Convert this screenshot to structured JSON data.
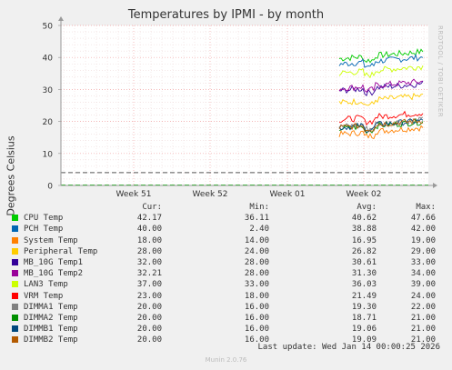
{
  "chart_data": {
    "type": "line",
    "title": "Temperatures by IPMI - by month",
    "ylabel": "Degrees Celsius",
    "ylim": [
      0,
      50
    ],
    "yticks": [
      0,
      10,
      20,
      30,
      40,
      50
    ],
    "xticks": [
      "Week 51",
      "Week 52",
      "Week 01",
      "Week 02"
    ],
    "grid": true,
    "legend_columns": [
      "Cur:",
      "Min:",
      "Avg:",
      "Max:"
    ],
    "series": [
      {
        "name": "CPU Temp",
        "color": "#00cc00",
        "cur": "42.17",
        "min": "36.11",
        "avg": "40.62",
        "max": "47.66",
        "level": 40.62
      },
      {
        "name": "PCH Temp",
        "color": "#0066b3",
        "cur": "40.00",
        "min": "2.40",
        "avg": "38.88",
        "max": "42.00",
        "level": 38.88
      },
      {
        "name": "System Temp",
        "color": "#ff8000",
        "cur": "18.00",
        "min": "14.00",
        "avg": "16.95",
        "max": "19.00",
        "level": 16.95
      },
      {
        "name": "Peripheral Temp",
        "color": "#ffcc00",
        "cur": "28.00",
        "min": "24.00",
        "avg": "26.82",
        "max": "29.00",
        "level": 26.82
      },
      {
        "name": "MB_10G Temp1",
        "color": "#330099",
        "cur": "32.00",
        "min": "28.00",
        "avg": "30.61",
        "max": "33.00",
        "level": 30.61
      },
      {
        "name": "MB_10G Temp2",
        "color": "#990099",
        "cur": "32.21",
        "min": "28.00",
        "avg": "31.30",
        "max": "34.00",
        "level": 31.3
      },
      {
        "name": "LAN3 Temp",
        "color": "#ccff00",
        "cur": "37.00",
        "min": "33.00",
        "avg": "36.03",
        "max": "39.00",
        "level": 36.03
      },
      {
        "name": "VRM Temp",
        "color": "#ff0000",
        "cur": "23.00",
        "min": "18.00",
        "avg": "21.49",
        "max": "24.00",
        "level": 21.49
      },
      {
        "name": "DIMMA1 Temp",
        "color": "#808080",
        "cur": "20.00",
        "min": "16.00",
        "avg": "19.30",
        "max": "22.00",
        "level": 19.3
      },
      {
        "name": "DIMMA2 Temp",
        "color": "#008f00",
        "cur": "20.00",
        "min": "16.00",
        "avg": "18.71",
        "max": "21.00",
        "level": 18.71
      },
      {
        "name": "DIMMB1 Temp",
        "color": "#00487d",
        "cur": "20.00",
        "min": "16.00",
        "avg": "19.06",
        "max": "21.00",
        "level": 19.06
      },
      {
        "name": "DIMMB2 Temp",
        "color": "#b35a00",
        "cur": "20.00",
        "min": "16.00",
        "avg": "19.09",
        "max": "21.00",
        "level": 19.09
      }
    ],
    "reference_lines": [
      {
        "value": 4,
        "color": "#555555",
        "style": "dashed"
      },
      {
        "value": 0,
        "color": "#00cc00",
        "style": "dashed"
      }
    ]
  },
  "last_update": "Last update: Wed Jan 14 00:00:25 2026",
  "watermark": "RRDTOOL / TOBI OETIKER",
  "footer": "Munin 2.0.76"
}
